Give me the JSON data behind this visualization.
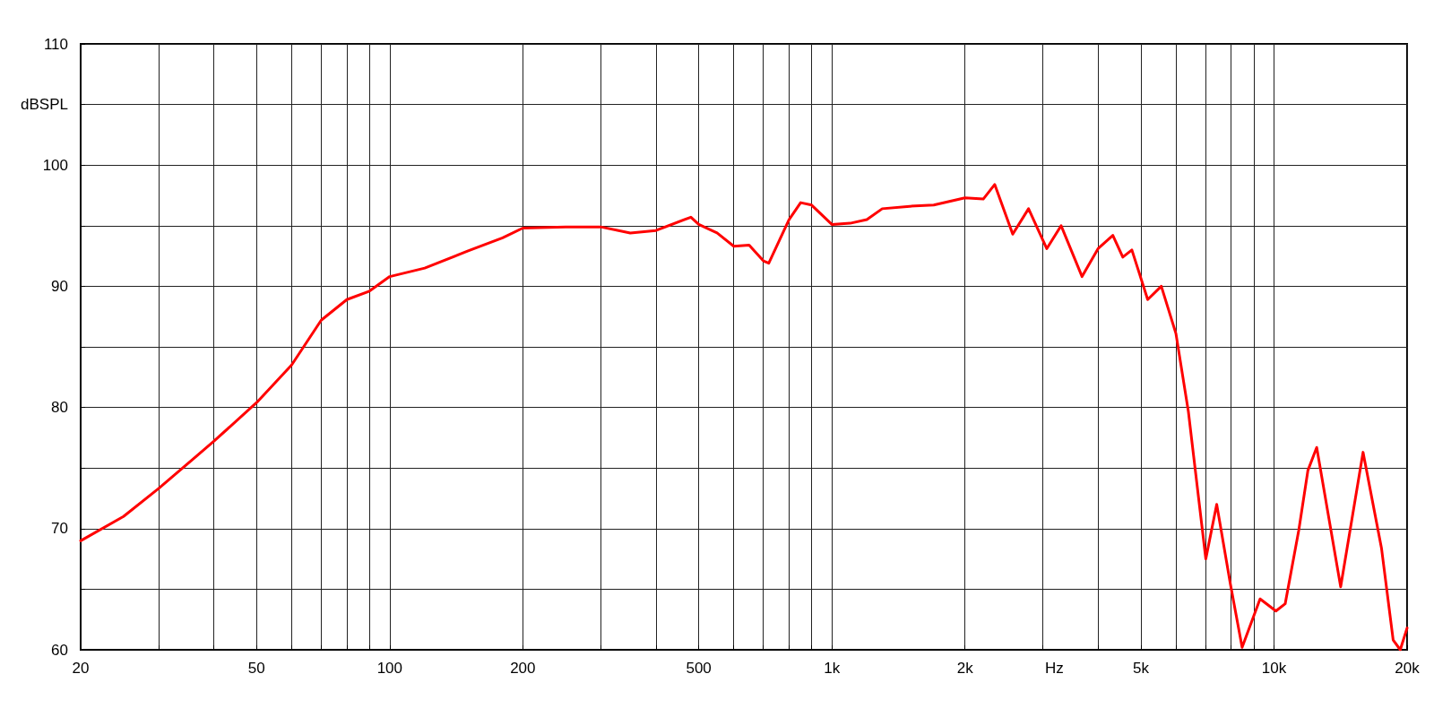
{
  "chart_data": {
    "type": "line",
    "xlabel": "Hz",
    "ylabel": "dBSPL",
    "log": "x",
    "x": [
      20,
      25,
      30,
      40,
      50,
      60,
      70,
      80,
      90,
      100,
      120,
      150,
      180,
      200,
      250,
      300,
      350,
      400,
      480,
      500,
      550,
      600,
      650,
      700,
      720,
      800,
      850,
      900,
      1000,
      1100,
      1200,
      1300,
      1500,
      1700,
      2000,
      2200,
      2335,
      2565,
      2785,
      3062,
      3300,
      3680,
      4000,
      4320,
      4550,
      4770,
      5180,
      5560,
      6000,
      6400,
      7010,
      7420,
      7970,
      8470,
      9300,
      10100,
      10600,
      11380,
      11930,
      12490,
      14150,
      15900,
      17500,
      18600,
      19300,
      20000
    ],
    "series": [
      {
        "color": "#ff0000",
        "values": [
          69.0,
          71.0,
          73.3,
          77.2,
          80.4,
          83.5,
          87.2,
          88.9,
          89.6,
          90.8,
          91.5,
          92.9,
          94.0,
          94.8,
          94.9,
          94.9,
          94.4,
          94.6,
          95.7,
          95.1,
          94.4,
          93.3,
          93.4,
          92.1,
          91.9,
          95.5,
          96.9,
          96.7,
          95.1,
          95.2,
          95.5,
          96.4,
          96.6,
          96.7,
          97.3,
          97.2,
          98.4,
          94.3,
          96.4,
          93.1,
          95.0,
          90.8,
          93.1,
          94.2,
          92.4,
          93.0,
          88.9,
          90.0,
          86.1,
          79.7,
          67.5,
          72.0,
          65.4,
          60.2,
          64.2,
          63.2,
          63.8,
          69.9,
          74.8,
          76.7,
          65.2,
          76.3,
          68.4,
          60.8,
          60.0,
          61.8
        ]
      }
    ],
    "xlim": [
      20,
      20000
    ],
    "xticks": [
      20,
      {
        "value": 30,
        "label": null
      },
      {
        "value": 40,
        "label": null
      },
      50,
      {
        "value": 60,
        "label": null
      },
      {
        "value": 70,
        "label": null
      },
      {
        "value": 80,
        "label": null
      },
      {
        "value": 90,
        "label": null
      },
      100,
      200,
      {
        "value": 300,
        "label": null
      },
      {
        "value": 400,
        "label": null
      },
      500,
      {
        "value": 600,
        "label": null
      },
      {
        "value": 700,
        "label": null
      },
      {
        "value": 800,
        "label": null
      },
      {
        "value": 900,
        "label": null
      },
      {
        "value": 1000,
        "label": "1k"
      },
      {
        "value": 2000,
        "label": "2k"
      },
      {
        "value": 3000,
        "label": null
      },
      {
        "value": 4000,
        "label": null
      },
      {
        "value": 5000,
        "label": "5k"
      },
      {
        "value": 6000,
        "label": null
      },
      {
        "value": 7000,
        "label": null
      },
      {
        "value": 8000,
        "label": null
      },
      {
        "value": 9000,
        "label": null
      },
      {
        "value": 10000,
        "label": "10k"
      },
      {
        "value": 20000,
        "label": "20k"
      }
    ],
    "ylim": [
      60,
      110
    ],
    "yticks": [
      60,
      {
        "value": 65,
        "label": null
      },
      70,
      {
        "value": 75,
        "label": null
      },
      80,
      {
        "value": 85,
        "label": null
      },
      90,
      {
        "value": 95,
        "label": null
      },
      100,
      {
        "value": 105,
        "label": null
      },
      110
    ],
    "grid": true,
    "marker": "none",
    "line_style": "solid"
  }
}
